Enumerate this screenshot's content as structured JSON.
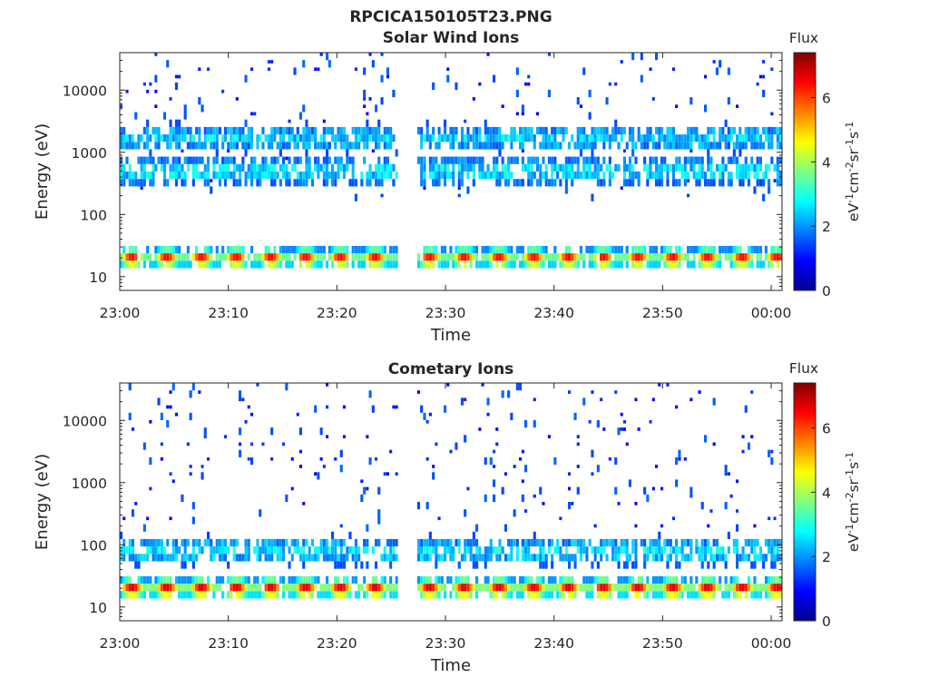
{
  "figure_title": "RPCICA150105T23.PNG",
  "chart_data": [
    {
      "type": "heatmap",
      "title": "Solar Wind Ions",
      "xlabel": "Time",
      "ylabel": "Energy (eV)",
      "y_scale": "log",
      "ylim": [
        6,
        40000
      ],
      "xlim": [
        "23:00",
        "00:01"
      ],
      "xticks": [
        "23:00",
        "23:10",
        "23:20",
        "23:30",
        "23:40",
        "23:50",
        "00:00"
      ],
      "yticks": [
        "10",
        "100",
        "1000",
        "10000"
      ],
      "colorbar": {
        "title": "Flux",
        "label": "eV-1cm-2sr-1s-1",
        "range": [
          0,
          7.4
        ],
        "ticks": [
          "0",
          "2",
          "4",
          "6"
        ],
        "colormap": "jet"
      },
      "data_gap": [
        "23:23",
        "23:27"
      ],
      "scan_period_minutes": 3.2,
      "cycle_starts_minutes": [
        0,
        3.2,
        6.4,
        9.6,
        12.8,
        16.0,
        19.2,
        22.4,
        27.4,
        30.6,
        33.8,
        37.0,
        40.2,
        43.4,
        46.6,
        49.8,
        53.0,
        56.2,
        59.4
      ],
      "peak_energy_eV": 20,
      "peak_flux": 6.5,
      "secondary_peaks": [
        {
          "energy_eV": 500,
          "flux": 3.2
        },
        {
          "energy_eV": 1700,
          "flux": 3.0
        }
      ]
    },
    {
      "type": "heatmap",
      "title": "Cometary Ions",
      "xlabel": "Time",
      "ylabel": "Energy (eV)",
      "y_scale": "log",
      "ylim": [
        6,
        40000
      ],
      "xlim": [
        "23:00",
        "00:01"
      ],
      "xticks": [
        "23:00",
        "23:10",
        "23:20",
        "23:30",
        "23:40",
        "23:50",
        "00:00"
      ],
      "yticks": [
        "10",
        "100",
        "1000",
        "10000"
      ],
      "colorbar": {
        "title": "Flux",
        "label": "eV-1cm-2sr-1s-1",
        "range": [
          0,
          7.4
        ],
        "ticks": [
          "0",
          "2",
          "4",
          "6"
        ],
        "colormap": "jet"
      },
      "data_gap": [
        "23:23",
        "23:27"
      ],
      "scan_period_minutes": 3.2,
      "cycle_starts_minutes": [
        0,
        3.2,
        6.4,
        9.6,
        12.8,
        16.0,
        19.2,
        22.4,
        27.4,
        30.6,
        33.8,
        37.0,
        40.2,
        43.4,
        46.6,
        49.8,
        53.0,
        56.2,
        59.4
      ],
      "peak_energy_eV": 20,
      "peak_flux": 6.8,
      "secondary_peaks": [
        {
          "energy_eV": 80,
          "flux": 3.2
        }
      ]
    }
  ]
}
